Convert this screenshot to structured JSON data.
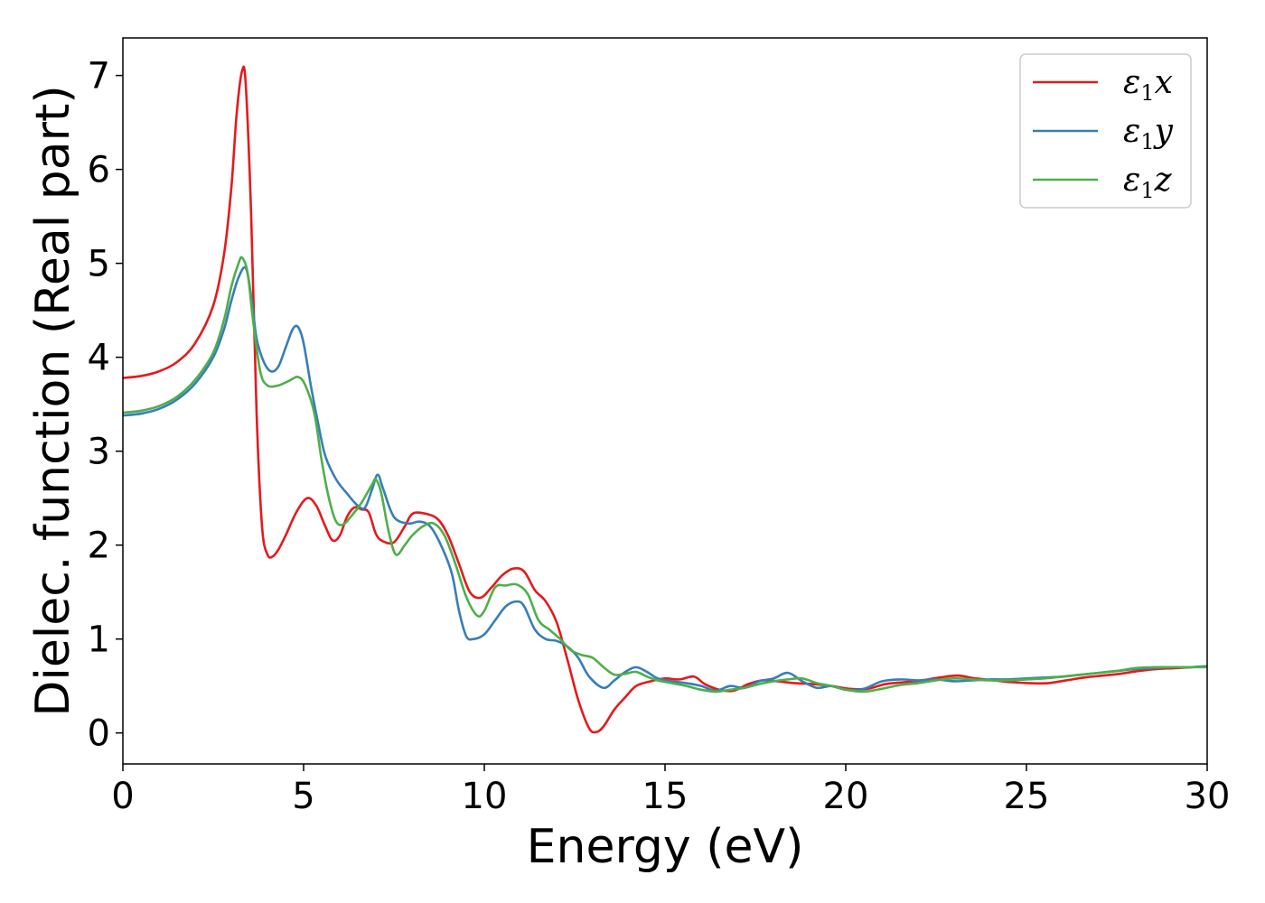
{
  "chart_data": {
    "type": "line",
    "xlabel": "Energy (eV)",
    "ylabel": "Dielec. function (Real part)",
    "xlim": [
      0,
      30
    ],
    "ylim": [
      -0.33,
      7.4
    ],
    "xticks": [
      0,
      5,
      10,
      15,
      20,
      25,
      30
    ],
    "yticks": [
      0,
      1,
      2,
      3,
      4,
      5,
      6,
      7
    ],
    "grid": false,
    "legend_position": "top-right",
    "series": [
      {
        "name": "ε1x",
        "legend": {
          "sym": "ε",
          "sub": "1",
          "var": "x"
        },
        "color": "#e41a1c",
        "points": [
          [
            0,
            3.78
          ],
          [
            0.5,
            3.8
          ],
          [
            1,
            3.85
          ],
          [
            1.5,
            3.95
          ],
          [
            2,
            4.15
          ],
          [
            2.5,
            4.55
          ],
          [
            2.8,
            5.1
          ],
          [
            3.0,
            5.8
          ],
          [
            3.15,
            6.6
          ],
          [
            3.3,
            7.05
          ],
          [
            3.4,
            6.9
          ],
          [
            3.55,
            5.5
          ],
          [
            3.7,
            3.4
          ],
          [
            3.85,
            2.2
          ],
          [
            4.0,
            1.9
          ],
          [
            4.15,
            1.88
          ],
          [
            4.3,
            1.95
          ],
          [
            4.5,
            2.1
          ],
          [
            4.8,
            2.35
          ],
          [
            5.1,
            2.5
          ],
          [
            5.35,
            2.42
          ],
          [
            5.6,
            2.2
          ],
          [
            5.8,
            2.05
          ],
          [
            6.0,
            2.1
          ],
          [
            6.2,
            2.3
          ],
          [
            6.4,
            2.4
          ],
          [
            6.6,
            2.38
          ],
          [
            6.8,
            2.35
          ],
          [
            7.0,
            2.12
          ],
          [
            7.2,
            2.04
          ],
          [
            7.5,
            2.03
          ],
          [
            7.8,
            2.2
          ],
          [
            8.0,
            2.33
          ],
          [
            8.3,
            2.34
          ],
          [
            8.7,
            2.28
          ],
          [
            9.0,
            2.1
          ],
          [
            9.3,
            1.8
          ],
          [
            9.6,
            1.5
          ],
          [
            9.9,
            1.44
          ],
          [
            10.2,
            1.55
          ],
          [
            10.5,
            1.68
          ],
          [
            10.8,
            1.75
          ],
          [
            11.1,
            1.72
          ],
          [
            11.4,
            1.52
          ],
          [
            11.7,
            1.4
          ],
          [
            12.0,
            1.18
          ],
          [
            12.3,
            0.78
          ],
          [
            12.6,
            0.35
          ],
          [
            12.9,
            0.05
          ],
          [
            13.1,
            0.01
          ],
          [
            13.3,
            0.07
          ],
          [
            13.6,
            0.25
          ],
          [
            13.9,
            0.38
          ],
          [
            14.2,
            0.5
          ],
          [
            14.6,
            0.55
          ],
          [
            15.0,
            0.58
          ],
          [
            15.4,
            0.57
          ],
          [
            15.8,
            0.6
          ],
          [
            16.1,
            0.52
          ],
          [
            16.5,
            0.46
          ],
          [
            16.9,
            0.45
          ],
          [
            17.3,
            0.52
          ],
          [
            17.7,
            0.56
          ],
          [
            18.1,
            0.55
          ],
          [
            18.6,
            0.53
          ],
          [
            19.1,
            0.52
          ],
          [
            19.6,
            0.5
          ],
          [
            20.1,
            0.47
          ],
          [
            20.6,
            0.47
          ],
          [
            21.1,
            0.52
          ],
          [
            21.6,
            0.54
          ],
          [
            22.1,
            0.56
          ],
          [
            22.6,
            0.59
          ],
          [
            23.1,
            0.61
          ],
          [
            23.6,
            0.58
          ],
          [
            24.1,
            0.56
          ],
          [
            24.6,
            0.54
          ],
          [
            25.1,
            0.53
          ],
          [
            25.6,
            0.53
          ],
          [
            26.1,
            0.56
          ],
          [
            26.6,
            0.59
          ],
          [
            27.1,
            0.61
          ],
          [
            27.6,
            0.63
          ],
          [
            28.1,
            0.66
          ],
          [
            28.6,
            0.68
          ],
          [
            29.1,
            0.69
          ],
          [
            29.6,
            0.7
          ],
          [
            30,
            0.71
          ]
        ]
      },
      {
        "name": "ε1y",
        "legend": {
          "sym": "ε",
          "sub": "1",
          "var": "y"
        },
        "color": "#377eb8",
        "points": [
          [
            0,
            3.38
          ],
          [
            0.5,
            3.4
          ],
          [
            1,
            3.45
          ],
          [
            1.5,
            3.55
          ],
          [
            2,
            3.72
          ],
          [
            2.5,
            4.0
          ],
          [
            2.8,
            4.3
          ],
          [
            3.0,
            4.6
          ],
          [
            3.2,
            4.85
          ],
          [
            3.4,
            4.95
          ],
          [
            3.55,
            4.65
          ],
          [
            3.7,
            4.2
          ],
          [
            3.9,
            3.95
          ],
          [
            4.1,
            3.85
          ],
          [
            4.3,
            3.9
          ],
          [
            4.5,
            4.1
          ],
          [
            4.7,
            4.3
          ],
          [
            4.85,
            4.32
          ],
          [
            5.0,
            4.15
          ],
          [
            5.2,
            3.7
          ],
          [
            5.4,
            3.3
          ],
          [
            5.6,
            2.95
          ],
          [
            5.9,
            2.7
          ],
          [
            6.2,
            2.55
          ],
          [
            6.5,
            2.42
          ],
          [
            6.7,
            2.4
          ],
          [
            6.9,
            2.6
          ],
          [
            7.05,
            2.75
          ],
          [
            7.2,
            2.6
          ],
          [
            7.5,
            2.3
          ],
          [
            7.9,
            2.23
          ],
          [
            8.2,
            2.25
          ],
          [
            8.5,
            2.2
          ],
          [
            8.8,
            2.0
          ],
          [
            9.1,
            1.7
          ],
          [
            9.3,
            1.3
          ],
          [
            9.5,
            1.03
          ],
          [
            9.7,
            1.0
          ],
          [
            10.0,
            1.05
          ],
          [
            10.3,
            1.2
          ],
          [
            10.6,
            1.35
          ],
          [
            10.9,
            1.4
          ],
          [
            11.1,
            1.35
          ],
          [
            11.4,
            1.1
          ],
          [
            11.7,
            1.0
          ],
          [
            12.0,
            0.98
          ],
          [
            12.3,
            0.92
          ],
          [
            12.6,
            0.8
          ],
          [
            12.9,
            0.6
          ],
          [
            13.3,
            0.48
          ],
          [
            13.6,
            0.56
          ],
          [
            13.9,
            0.65
          ],
          [
            14.2,
            0.7
          ],
          [
            14.5,
            0.65
          ],
          [
            14.8,
            0.58
          ],
          [
            15.2,
            0.55
          ],
          [
            15.6,
            0.53
          ],
          [
            16.0,
            0.5
          ],
          [
            16.4,
            0.45
          ],
          [
            16.8,
            0.5
          ],
          [
            17.2,
            0.48
          ],
          [
            17.6,
            0.55
          ],
          [
            18.0,
            0.58
          ],
          [
            18.4,
            0.64
          ],
          [
            18.8,
            0.55
          ],
          [
            19.2,
            0.48
          ],
          [
            19.6,
            0.5
          ],
          [
            20.0,
            0.46
          ],
          [
            20.5,
            0.47
          ],
          [
            21.0,
            0.55
          ],
          [
            21.5,
            0.57
          ],
          [
            22.0,
            0.56
          ],
          [
            22.5,
            0.57
          ],
          [
            23.0,
            0.55
          ],
          [
            23.5,
            0.56
          ],
          [
            24.0,
            0.57
          ],
          [
            24.5,
            0.57
          ],
          [
            25.0,
            0.58
          ],
          [
            25.5,
            0.59
          ],
          [
            26.0,
            0.6
          ],
          [
            26.5,
            0.62
          ],
          [
            27.0,
            0.64
          ],
          [
            27.5,
            0.66
          ],
          [
            28.0,
            0.68
          ],
          [
            28.5,
            0.69
          ],
          [
            29.0,
            0.7
          ],
          [
            29.5,
            0.7
          ],
          [
            30,
            0.71
          ]
        ]
      },
      {
        "name": "ε1z",
        "legend": {
          "sym": "ε",
          "sub": "1",
          "var": "z"
        },
        "color": "#4daf4a",
        "points": [
          [
            0,
            3.41
          ],
          [
            0.5,
            3.43
          ],
          [
            1,
            3.48
          ],
          [
            1.5,
            3.58
          ],
          [
            2,
            3.76
          ],
          [
            2.5,
            4.05
          ],
          [
            2.8,
            4.4
          ],
          [
            3.0,
            4.75
          ],
          [
            3.2,
            5.0
          ],
          [
            3.3,
            5.06
          ],
          [
            3.45,
            4.9
          ],
          [
            3.6,
            4.4
          ],
          [
            3.8,
            3.85
          ],
          [
            4.0,
            3.7
          ],
          [
            4.3,
            3.7
          ],
          [
            4.6,
            3.75
          ],
          [
            4.85,
            3.79
          ],
          [
            5.05,
            3.7
          ],
          [
            5.3,
            3.4
          ],
          [
            5.5,
            2.9
          ],
          [
            5.7,
            2.5
          ],
          [
            5.9,
            2.25
          ],
          [
            6.1,
            2.22
          ],
          [
            6.3,
            2.3
          ],
          [
            6.6,
            2.45
          ],
          [
            6.9,
            2.65
          ],
          [
            7.0,
            2.7
          ],
          [
            7.15,
            2.55
          ],
          [
            7.35,
            2.15
          ],
          [
            7.55,
            1.9
          ],
          [
            7.8,
            2.0
          ],
          [
            8.0,
            2.1
          ],
          [
            8.3,
            2.2
          ],
          [
            8.6,
            2.23
          ],
          [
            8.9,
            2.1
          ],
          [
            9.2,
            1.8
          ],
          [
            9.5,
            1.45
          ],
          [
            9.8,
            1.25
          ],
          [
            10.0,
            1.3
          ],
          [
            10.3,
            1.55
          ],
          [
            10.6,
            1.57
          ],
          [
            10.9,
            1.58
          ],
          [
            11.2,
            1.48
          ],
          [
            11.5,
            1.2
          ],
          [
            11.8,
            1.1
          ],
          [
            12.1,
            1.0
          ],
          [
            12.4,
            0.88
          ],
          [
            12.7,
            0.83
          ],
          [
            13.0,
            0.8
          ],
          [
            13.3,
            0.7
          ],
          [
            13.6,
            0.62
          ],
          [
            13.9,
            0.63
          ],
          [
            14.2,
            0.65
          ],
          [
            14.5,
            0.6
          ],
          [
            14.8,
            0.56
          ],
          [
            15.2,
            0.53
          ],
          [
            15.6,
            0.5
          ],
          [
            16.0,
            0.46
          ],
          [
            16.4,
            0.44
          ],
          [
            16.8,
            0.46
          ],
          [
            17.2,
            0.48
          ],
          [
            17.6,
            0.52
          ],
          [
            18.0,
            0.55
          ],
          [
            18.4,
            0.57
          ],
          [
            18.8,
            0.58
          ],
          [
            19.2,
            0.53
          ],
          [
            19.6,
            0.5
          ],
          [
            20.0,
            0.46
          ],
          [
            20.5,
            0.44
          ],
          [
            21.0,
            0.47
          ],
          [
            21.5,
            0.51
          ],
          [
            22.0,
            0.53
          ],
          [
            22.5,
            0.56
          ],
          [
            23.0,
            0.58
          ],
          [
            23.5,
            0.57
          ],
          [
            24.0,
            0.56
          ],
          [
            24.5,
            0.56
          ],
          [
            25.0,
            0.57
          ],
          [
            25.5,
            0.58
          ],
          [
            26.0,
            0.6
          ],
          [
            26.5,
            0.62
          ],
          [
            27.0,
            0.64
          ],
          [
            27.5,
            0.66
          ],
          [
            28.0,
            0.69
          ],
          [
            28.5,
            0.7
          ],
          [
            29.0,
            0.7
          ],
          [
            29.5,
            0.7
          ],
          [
            30,
            0.7
          ]
        ]
      }
    ]
  }
}
